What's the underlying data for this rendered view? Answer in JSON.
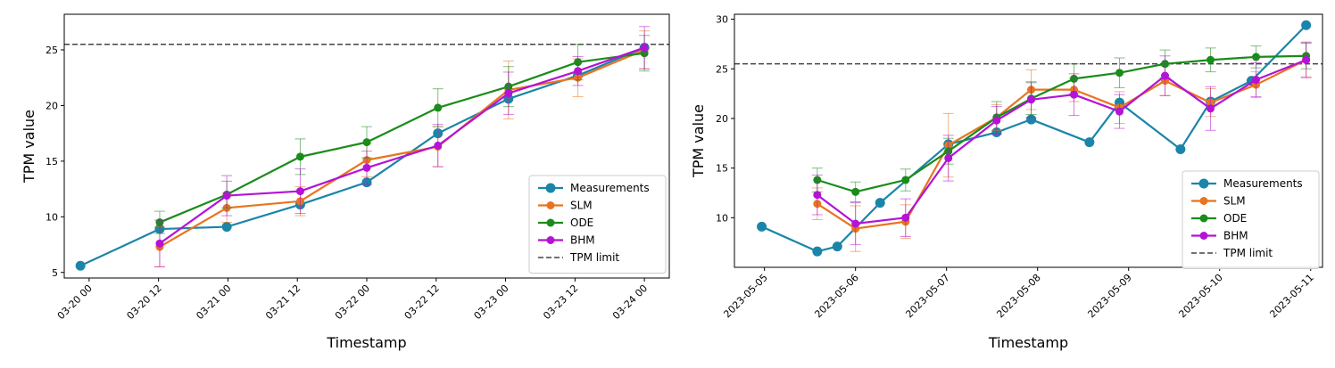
{
  "chart_data": [
    {
      "type": "line",
      "xlabel": "Timestamp",
      "ylabel": "TPM value",
      "x_unit": "hours",
      "xlim": [
        -4.3,
        100.3
      ],
      "ylim": [
        4.5,
        28.2
      ],
      "x_ticks": [
        {
          "x": 0,
          "label": "03-20 00"
        },
        {
          "x": 12,
          "label": "03-20 12"
        },
        {
          "x": 24,
          "label": "03-21 00"
        },
        {
          "x": 36,
          "label": "03-21 12"
        },
        {
          "x": 48,
          "label": "03-22 00"
        },
        {
          "x": 60,
          "label": "03-22 12"
        },
        {
          "x": 72,
          "label": "03-23 00"
        },
        {
          "x": 84,
          "label": "03-23 12"
        },
        {
          "x": 96,
          "label": "03-24 00"
        }
      ],
      "y_ticks": [
        5,
        10,
        15,
        20,
        25
      ],
      "threshold": {
        "name": "TPM limit",
        "value": 25.5
      },
      "legend": {
        "location": "lower-right",
        "entries": [
          "Measurements",
          "SLM",
          "ODE",
          "BHM",
          "TPM limit"
        ]
      },
      "series": [
        {
          "name": "Measurements",
          "color": "#1a85a8",
          "x": [
            -1.5,
            12.2,
            23.8,
            36.5,
            48.0,
            60.3,
            72.5,
            84.5,
            96.0
          ],
          "y": [
            5.6,
            8.9,
            9.1,
            11.1,
            13.1,
            17.5,
            20.6,
            22.7,
            25.2
          ]
        },
        {
          "name": "SLM",
          "color": "#e8741f",
          "x": [
            12.2,
            23.8,
            36.5,
            48.0,
            60.3,
            72.5,
            84.5,
            96.0
          ],
          "y": [
            7.3,
            10.8,
            11.4,
            15.1,
            16.3,
            21.4,
            22.5,
            25.0
          ],
          "yerr": [
            1.8,
            1.3,
            1.3,
            1.5,
            1.8,
            2.6,
            1.7,
            1.7
          ]
        },
        {
          "name": "ODE",
          "color": "#1a8c1a",
          "x": [
            12.2,
            23.8,
            36.5,
            48.0,
            60.3,
            72.5,
            84.5,
            96.0
          ],
          "y": [
            9.5,
            12.0,
            15.4,
            16.7,
            19.8,
            21.7,
            23.9,
            24.7
          ],
          "yerr": [
            1.0,
            1.2,
            1.6,
            1.4,
            1.7,
            1.8,
            1.6,
            1.6
          ]
        },
        {
          "name": "BHM",
          "color": "#b413d6",
          "x": [
            12.2,
            23.8,
            36.5,
            48.0,
            60.3,
            72.5,
            84.5,
            96.0
          ],
          "y": [
            7.6,
            11.9,
            12.3,
            14.4,
            16.4,
            21.1,
            23.1,
            25.2
          ],
          "yerr": [
            2.1,
            1.8,
            2.0,
            1.5,
            1.9,
            1.9,
            1.3,
            1.9
          ]
        }
      ]
    },
    {
      "type": "line",
      "xlabel": "Timestamp",
      "ylabel": "TPM value",
      "x_unit": "days",
      "xlim": [
        -0.33,
        6.13
      ],
      "ylim": [
        5.0,
        30.5
      ],
      "x_ticks": [
        {
          "x": 0,
          "label": "2023-05-05"
        },
        {
          "x": 1,
          "label": "2023-05-06"
        },
        {
          "x": 2,
          "label": "2023-05-07"
        },
        {
          "x": 3,
          "label": "2023-05-08"
        },
        {
          "x": 4,
          "label": "2023-05-09"
        },
        {
          "x": 5,
          "label": "2023-05-10"
        },
        {
          "x": 6,
          "label": "2023-05-11"
        }
      ],
      "y_ticks": [
        10,
        15,
        20,
        25,
        30
      ],
      "threshold": {
        "name": "TPM limit",
        "value": 25.5
      },
      "legend": {
        "location": "lower-right",
        "entries": [
          "Measurements",
          "SLM",
          "ODE",
          "BHM",
          "TPM limit"
        ]
      },
      "series": [
        {
          "name": "Measurements",
          "color": "#1a85a8",
          "x": [
            -0.03,
            0.58,
            0.8,
            1.27,
            2.02,
            2.55,
            2.93,
            3.57,
            3.9,
            4.57,
            4.9,
            5.35,
            5.95
          ],
          "y": [
            9.1,
            6.6,
            7.1,
            11.5,
            17.4,
            18.6,
            19.9,
            17.6,
            21.6,
            16.9,
            21.7,
            23.8,
            29.4
          ]
        },
        {
          "name": "SLM",
          "color": "#e8741f",
          "x": [
            0.58,
            1.0,
            1.55,
            2.02,
            2.55,
            2.93,
            3.4,
            3.9,
            4.4,
            4.9,
            5.4,
            5.95
          ],
          "y": [
            11.4,
            8.9,
            9.6,
            17.3,
            20.1,
            22.9,
            22.9,
            21.1,
            23.8,
            21.6,
            23.4,
            25.9
          ],
          "yerr": [
            1.6,
            2.3,
            1.7,
            3.2,
            1.3,
            2.0,
            1.2,
            1.6,
            1.5,
            1.4,
            1.3,
            1.7
          ]
        },
        {
          "name": "ODE",
          "color": "#1a8c1a",
          "x": [
            0.58,
            1.0,
            1.55,
            2.02,
            2.55,
            2.93,
            3.4,
            3.9,
            4.4,
            4.9,
            5.4,
            5.95
          ],
          "y": [
            13.8,
            12.6,
            13.8,
            16.7,
            20.1,
            22.0,
            24.0,
            24.6,
            25.5,
            25.9,
            26.2,
            26.3
          ],
          "yerr": [
            1.2,
            1.0,
            1.1,
            1.3,
            1.6,
            1.6,
            1.5,
            1.5,
            1.4,
            1.2,
            1.1,
            1.3
          ]
        },
        {
          "name": "BHM",
          "color": "#b413d6",
          "x": [
            0.58,
            1.0,
            1.55,
            2.02,
            2.55,
            2.93,
            3.4,
            3.9,
            4.4,
            4.9,
            5.4,
            5.95
          ],
          "y": [
            12.3,
            9.4,
            10.0,
            16.0,
            19.8,
            21.9,
            22.4,
            20.7,
            24.3,
            21.0,
            23.9,
            25.9
          ],
          "yerr": [
            2.0,
            2.1,
            1.9,
            2.3,
            1.4,
            1.8,
            2.1,
            1.7,
            2.0,
            2.2,
            1.7,
            1.8
          ]
        }
      ]
    }
  ]
}
